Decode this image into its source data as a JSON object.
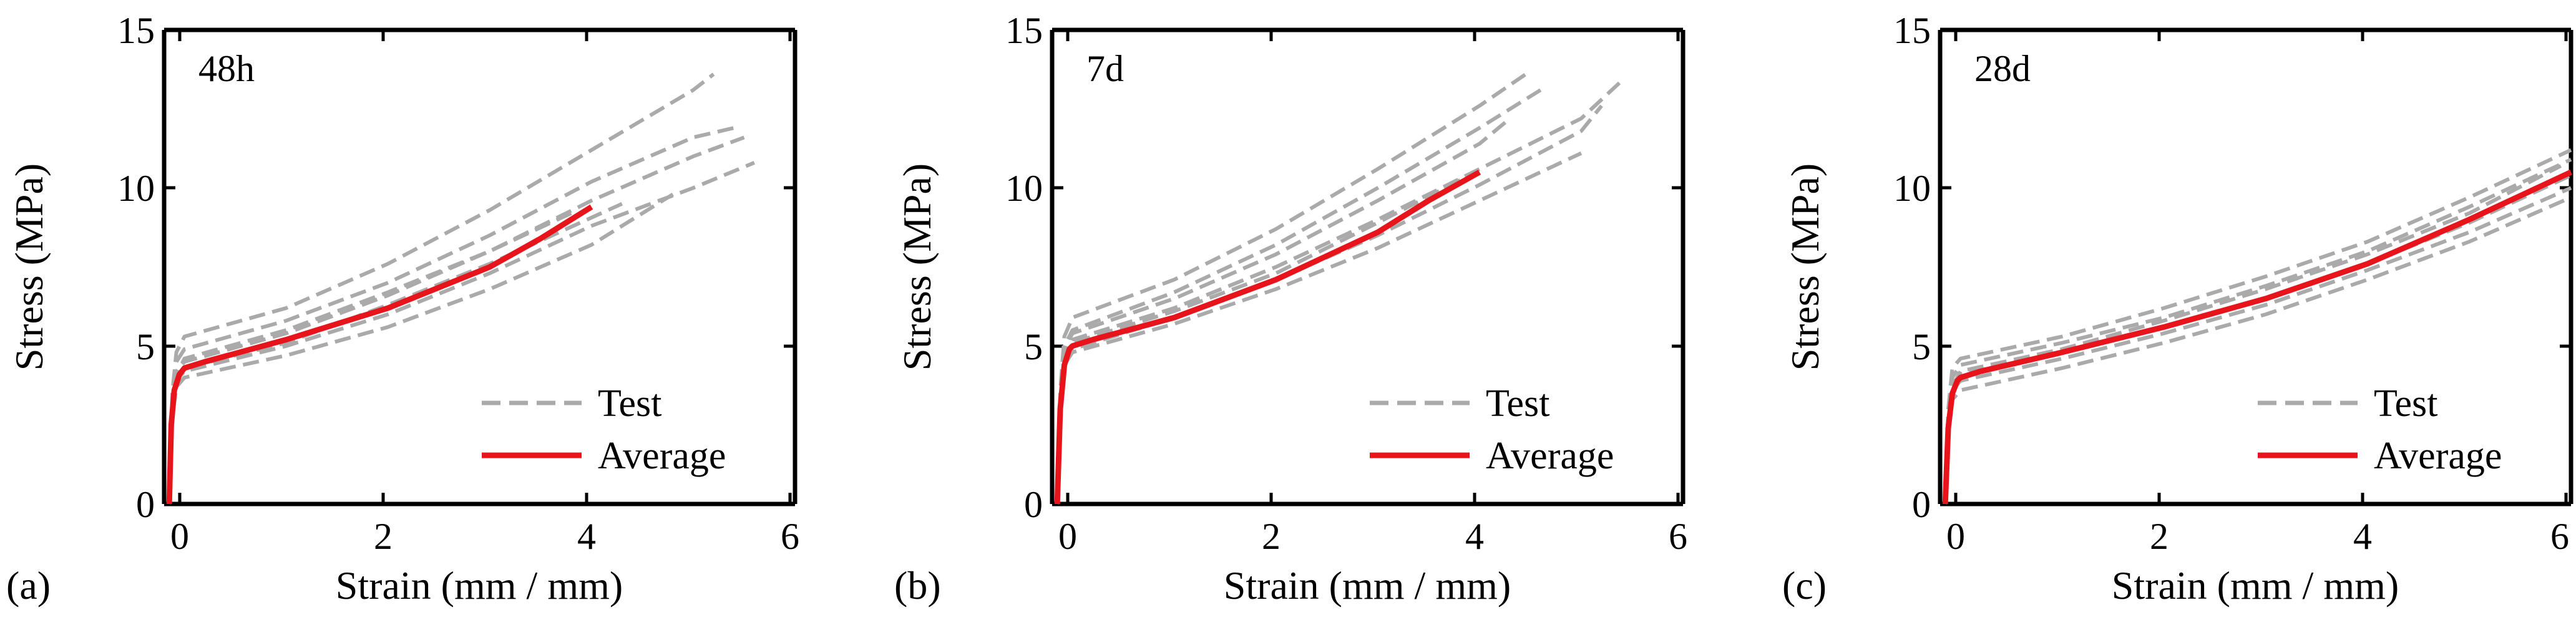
{
  "figure": {
    "colors": {
      "test": "#aaaaaa",
      "average": "#e8141c",
      "axes": "#000000"
    }
  },
  "chart_data": [
    {
      "type": "line",
      "panel_label": "(a)",
      "annotation": "48h",
      "xlabel": "Strain (mm / mm)",
      "ylabel": "Stress (MPa)",
      "xlim": [
        -0.2,
        6
      ],
      "ylim": [
        0,
        15
      ],
      "xticks": [
        "0",
        "2",
        "4",
        "6"
      ],
      "yticks": [
        "0",
        "5",
        "10",
        "15"
      ],
      "legend": {
        "position": "bottom-right",
        "entries": [
          "Test",
          "Average"
        ]
      },
      "series": [
        {
          "name": "Average",
          "style": "solid",
          "x": [
            -0.15,
            -0.13,
            -0.1,
            -0.05,
            0,
            0.2,
            1,
            2,
            3,
            3.5,
            4
          ],
          "y": [
            0,
            2.5,
            3.6,
            4.1,
            4.3,
            4.5,
            5.2,
            6.2,
            7.5,
            8.4,
            9.4
          ]
        },
        {
          "name": "Test",
          "style": "dashed",
          "x": [
            -0.15,
            -0.12,
            -0.08,
            0,
            1,
            2,
            3,
            4,
            5,
            5.2
          ],
          "y": [
            0,
            3.5,
            4.8,
            5.3,
            6.2,
            7.6,
            9.3,
            11.2,
            13.1,
            13.6
          ]
        },
        {
          "name": "Test",
          "style": "dashed",
          "x": [
            -0.15,
            -0.12,
            -0.08,
            0,
            1,
            2,
            3,
            4,
            5,
            5.4
          ],
          "y": [
            0,
            3.3,
            4.5,
            4.9,
            5.8,
            7.0,
            8.5,
            10.2,
            11.6,
            11.9
          ]
        },
        {
          "name": "Test",
          "style": "dashed",
          "x": [
            -0.15,
            -0.12,
            -0.08,
            0,
            1,
            2,
            3,
            4,
            5,
            5.5
          ],
          "y": [
            0,
            3.0,
            4.2,
            4.5,
            5.4,
            6.6,
            8.0,
            9.6,
            11.0,
            11.6
          ]
        },
        {
          "name": "Test",
          "style": "dashed",
          "x": [
            -0.15,
            -0.12,
            -0.08,
            0,
            1,
            2,
            3,
            4,
            5,
            5.6
          ],
          "y": [
            0,
            2.8,
            3.9,
            4.2,
            5.0,
            6.0,
            7.3,
            8.8,
            10.0,
            10.8
          ]
        },
        {
          "name": "Test",
          "style": "dashed",
          "x": [
            -0.15,
            -0.12,
            -0.08,
            0,
            1,
            2,
            3,
            4,
            4.8
          ],
          "y": [
            0,
            2.7,
            3.7,
            4.0,
            4.7,
            5.6,
            6.8,
            8.2,
            9.8
          ]
        },
        {
          "name": "Test",
          "style": "dashed",
          "x": [
            -0.15,
            -0.12,
            -0.08,
            0,
            1,
            2,
            3,
            3.8
          ],
          "y": [
            0,
            3.1,
            4.1,
            4.6,
            5.5,
            6.7,
            8.0,
            9.2
          ]
        },
        {
          "name": "Test",
          "style": "dashed",
          "x": [
            -0.15,
            -0.12,
            -0.08,
            0,
            1,
            2,
            3,
            4.3
          ],
          "y": [
            0,
            2.9,
            4.0,
            4.3,
            5.1,
            6.3,
            7.6,
            9.5
          ]
        }
      ]
    },
    {
      "type": "line",
      "panel_label": "(b)",
      "annotation": "7d",
      "xlabel": "Strain (mm / mm)",
      "ylabel": "Stress (MPa)",
      "xlim": [
        -0.2,
        6
      ],
      "ylim": [
        0,
        15
      ],
      "xticks": [
        "0",
        "2",
        "4",
        "6"
      ],
      "yticks": [
        "0",
        "5",
        "10",
        "15"
      ],
      "legend": {
        "position": "bottom-right",
        "entries": [
          "Test",
          "Average"
        ]
      },
      "series": [
        {
          "name": "Average",
          "style": "solid",
          "x": [
            -0.15,
            -0.12,
            -0.08,
            -0.03,
            0,
            0.2,
            1,
            2,
            3,
            3.5,
            4
          ],
          "y": [
            0,
            3.0,
            4.4,
            4.9,
            5.0,
            5.2,
            5.9,
            7.1,
            8.6,
            9.6,
            10.5
          ]
        },
        {
          "name": "Test",
          "style": "dashed",
          "x": [
            -0.15,
            -0.12,
            -0.08,
            0,
            1,
            2,
            3,
            4,
            4.5
          ],
          "y": [
            0,
            3.6,
            5.3,
            5.9,
            7.1,
            8.7,
            10.6,
            12.6,
            13.7
          ]
        },
        {
          "name": "Test",
          "style": "dashed",
          "x": [
            -0.15,
            -0.12,
            -0.08,
            0,
            1,
            2,
            3,
            4,
            4.6
          ],
          "y": [
            0,
            3.4,
            5.0,
            5.5,
            6.7,
            8.2,
            10.0,
            11.9,
            13.1
          ]
        },
        {
          "name": "Test",
          "style": "dashed",
          "x": [
            -0.15,
            -0.12,
            -0.08,
            0,
            1,
            2,
            3,
            4,
            5,
            5.4
          ],
          "y": [
            0,
            3.2,
            4.8,
            5.2,
            6.2,
            7.5,
            9.0,
            10.6,
            12.2,
            13.4
          ]
        },
        {
          "name": "Test",
          "style": "dashed",
          "x": [
            -0.15,
            -0.12,
            -0.08,
            0,
            1,
            2,
            3,
            4,
            5,
            5.2
          ],
          "y": [
            0,
            3.0,
            4.5,
            4.9,
            5.9,
            7.1,
            8.5,
            10.1,
            11.8,
            12.6
          ]
        },
        {
          "name": "Test",
          "style": "dashed",
          "x": [
            -0.15,
            -0.12,
            -0.08,
            0,
            1,
            2,
            3,
            4,
            5
          ],
          "y": [
            0,
            2.9,
            4.4,
            4.8,
            5.7,
            6.8,
            8.1,
            9.6,
            11.1
          ]
        },
        {
          "name": "Test",
          "style": "dashed",
          "x": [
            -0.15,
            -0.12,
            -0.08,
            0,
            1,
            2,
            3,
            4,
            4.3
          ],
          "y": [
            0,
            3.3,
            4.9,
            5.4,
            6.5,
            7.9,
            9.6,
            11.4,
            12.2
          ]
        },
        {
          "name": "Test",
          "style": "dashed",
          "x": [
            -0.15,
            -0.12,
            -0.08,
            0,
            1,
            2,
            3,
            3.9
          ],
          "y": [
            0,
            3.1,
            4.7,
            5.1,
            6.1,
            7.3,
            8.9,
            10.4
          ]
        }
      ]
    },
    {
      "type": "line",
      "panel_label": "(c)",
      "annotation": "28d",
      "xlabel": "Strain (mm / mm)",
      "ylabel": "Stress (MPa)",
      "xlim": [
        -0.2,
        6
      ],
      "ylim": [
        0,
        15
      ],
      "xticks": [
        "0",
        "2",
        "4",
        "6"
      ],
      "yticks": [
        "0",
        "5",
        "10",
        "15"
      ],
      "legend": {
        "position": "bottom-right",
        "entries": [
          "Test",
          "Average"
        ]
      },
      "series": [
        {
          "name": "Average",
          "style": "solid",
          "x": [
            -0.15,
            -0.12,
            -0.08,
            -0.03,
            0,
            0.2,
            1,
            2,
            3,
            4,
            5,
            6
          ],
          "y": [
            0,
            2.4,
            3.5,
            3.9,
            4.0,
            4.2,
            4.8,
            5.6,
            6.5,
            7.6,
            9.0,
            10.5
          ]
        },
        {
          "name": "Test",
          "style": "dashed",
          "x": [
            -0.15,
            -0.12,
            -0.08,
            0,
            1,
            2,
            3,
            4,
            5,
            6
          ],
          "y": [
            0,
            3.0,
            4.3,
            4.6,
            5.3,
            6.2,
            7.2,
            8.3,
            9.7,
            11.2
          ]
        },
        {
          "name": "Test",
          "style": "dashed",
          "x": [
            -0.15,
            -0.12,
            -0.08,
            0,
            1,
            2,
            3,
            4,
            5,
            6
          ],
          "y": [
            0,
            2.8,
            4.0,
            4.4,
            5.1,
            5.9,
            6.9,
            8.0,
            9.4,
            10.9
          ]
        },
        {
          "name": "Test",
          "style": "dashed",
          "x": [
            -0.15,
            -0.12,
            -0.08,
            0,
            1,
            2,
            3,
            4,
            5,
            6
          ],
          "y": [
            0,
            2.6,
            3.8,
            4.1,
            4.8,
            5.6,
            6.5,
            7.6,
            8.9,
            10.4
          ]
        },
        {
          "name": "Test",
          "style": "dashed",
          "x": [
            -0.15,
            -0.12,
            -0.08,
            0,
            1,
            2,
            3,
            4,
            5,
            6
          ],
          "y": [
            0,
            2.4,
            3.6,
            3.9,
            4.6,
            5.4,
            6.3,
            7.4,
            8.6,
            10.0
          ]
        },
        {
          "name": "Test",
          "style": "dashed",
          "x": [
            -0.15,
            -0.12,
            -0.08,
            0,
            1,
            2,
            3,
            4,
            5,
            6
          ],
          "y": [
            0,
            2.2,
            3.3,
            3.6,
            4.3,
            5.1,
            6.0,
            7.1,
            8.3,
            9.7
          ]
        },
        {
          "name": "Test",
          "style": "dashed",
          "x": [
            -0.15,
            -0.12,
            -0.08,
            0,
            1,
            2,
            3,
            4,
            5,
            5.9
          ],
          "y": [
            0,
            2.5,
            3.7,
            4.2,
            4.9,
            5.8,
            6.8,
            7.9,
            9.2,
            10.7
          ]
        }
      ]
    }
  ]
}
